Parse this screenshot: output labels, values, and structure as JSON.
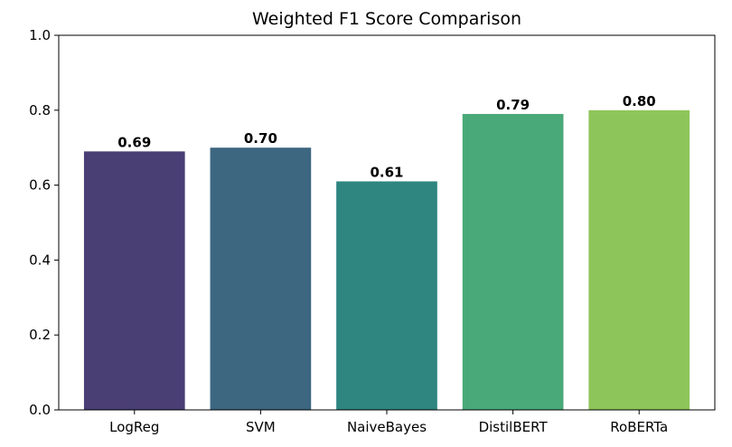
{
  "chart_data": {
    "type": "bar",
    "title": "Weighted F1 Score Comparison",
    "xlabel": "",
    "ylabel": "",
    "categories": [
      "LogReg",
      "SVM",
      "NaiveBayes",
      "DistilBERT",
      "RoBERTa"
    ],
    "values": [
      0.69,
      0.7,
      0.61,
      0.79,
      0.8
    ],
    "data_labels": [
      "0.69",
      "0.70",
      "0.61",
      "0.79",
      "0.80"
    ],
    "colors": [
      "#4a3f75",
      "#3d6781",
      "#2f8580",
      "#4aa978",
      "#8ec55a"
    ],
    "ylim": [
      0,
      1.0
    ],
    "yticks": [
      0.0,
      0.2,
      0.4,
      0.6,
      0.8,
      1.0
    ],
    "ytick_labels": [
      "0.0",
      "0.2",
      "0.4",
      "0.6",
      "0.8",
      "1.0"
    ],
    "grid": false,
    "legend": "none"
  }
}
